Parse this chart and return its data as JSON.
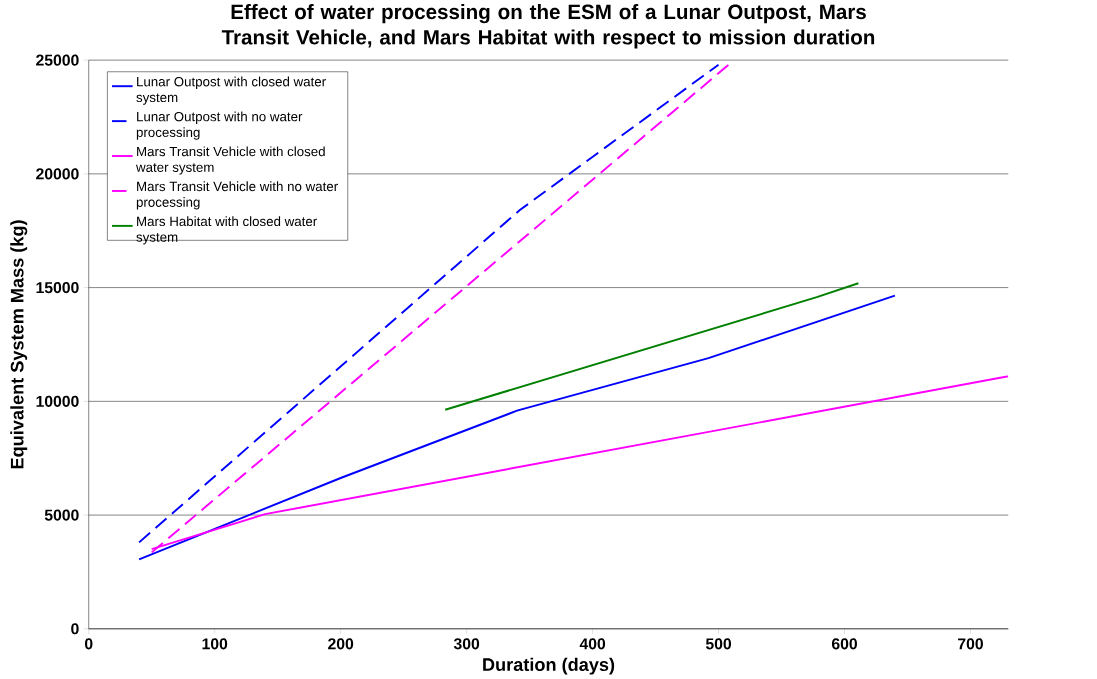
{
  "chart_data": {
    "type": "line",
    "title": "Effect of water processing on the ESM of a Lunar Outpost, Mars Transit Vehicle, and Mars Habitat with respect to mission duration",
    "xlabel": "Duration (days)",
    "ylabel": "Equivalent System Mass (kg)",
    "xlim": [
      0,
      730
    ],
    "ylim": [
      0,
      25000
    ],
    "xticks": [
      0,
      100,
      200,
      300,
      400,
      500,
      600,
      700
    ],
    "yticks": [
      0,
      5000,
      10000,
      15000,
      20000,
      25000
    ],
    "grid": "y",
    "legend": "top left",
    "marker": "none",
    "series": [
      {
        "name": "Lunar Outpost with closed water system",
        "color": "#0000ff",
        "line_style": "solid",
        "x": [
          40,
          200,
          340,
          492,
          640
        ],
        "values": [
          3050,
          6630,
          9590,
          11900,
          14650
        ]
      },
      {
        "name": "Lunar Outpost with no water processing",
        "color": "#0000ff",
        "line_style": "dashed",
        "x": [
          40,
          342,
          500
        ],
        "values": [
          3800,
          18400,
          24800
        ]
      },
      {
        "name": "Mars Transit Vehicle with closed water system",
        "color": "#ff00ff",
        "line_style": "solid",
        "x": [
          50,
          140,
          730
        ],
        "values": [
          3500,
          5040,
          11100
        ]
      },
      {
        "name": "Mars Transit Vehicle with no water processing",
        "color": "#ff00ff",
        "line_style": "dashed",
        "x": [
          50,
          508
        ],
        "values": [
          3360,
          24800
        ]
      },
      {
        "name": "Mars Habitat with closed water system",
        "color": "#008000",
        "line_style": "solid",
        "x": [
          283,
          578,
          611
        ],
        "values": [
          9630,
          14580,
          15190
        ]
      }
    ]
  }
}
